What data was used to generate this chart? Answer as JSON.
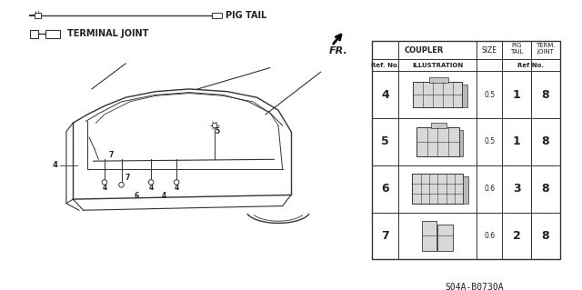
{
  "bg_color": "#ffffff",
  "title_text": "S04A-B0730A",
  "fr_label": "FR.",
  "pig_tail_label": "PIG TAIL",
  "terminal_joint_label": "TERMINAL JOINT",
  "line_color": "#333333",
  "text_color": "#222222",
  "table_rows": [
    {
      "ref": "4",
      "size": "0.5",
      "pig_tail": "1",
      "term_joint": "8"
    },
    {
      "ref": "5",
      "size": "0.5",
      "pig_tail": "1",
      "term_joint": "8"
    },
    {
      "ref": "6",
      "size": "0.6",
      "pig_tail": "3",
      "term_joint": "8"
    },
    {
      "ref": "7",
      "size": "0.6",
      "pig_tail": "2",
      "term_joint": "8"
    }
  ]
}
